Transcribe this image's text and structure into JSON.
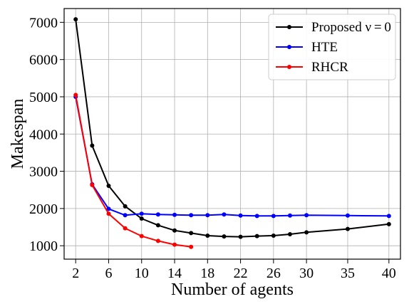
{
  "chart_data": {
    "type": "line",
    "title": "",
    "xlabel": "Number of agents",
    "ylabel": "Makespan",
    "xticks": [
      2,
      6,
      10,
      14,
      18,
      22,
      26,
      30,
      35,
      40
    ],
    "yticks": [
      1000,
      2000,
      3000,
      4000,
      5000,
      6000,
      7000
    ],
    "xlim": [
      0.6,
      41.4
    ],
    "ylim": [
      640,
      7370
    ],
    "grid": true,
    "legend_position": "top-right",
    "series": [
      {
        "name": "Proposed ν = 0",
        "color": "#000000",
        "x": [
          2,
          4,
          6,
          8,
          10,
          12,
          14,
          16,
          18,
          20,
          22,
          24,
          26,
          28,
          30,
          35,
          40
        ],
        "values": [
          7080,
          3690,
          2610,
          2060,
          1730,
          1550,
          1410,
          1340,
          1270,
          1250,
          1240,
          1260,
          1270,
          1310,
          1360,
          1450,
          1580
        ]
      },
      {
        "name": "HTE",
        "color": "#0000ff",
        "x": [
          2,
          4,
          6,
          8,
          10,
          12,
          14,
          16,
          18,
          20,
          22,
          24,
          26,
          28,
          30,
          35,
          40
        ],
        "values": [
          5000,
          2650,
          1990,
          1820,
          1860,
          1840,
          1830,
          1820,
          1820,
          1840,
          1810,
          1800,
          1800,
          1810,
          1820,
          1810,
          1800
        ]
      },
      {
        "name": "RHCR",
        "color": "#ff0000",
        "x": [
          2,
          4,
          6,
          8,
          10,
          12,
          14,
          16
        ],
        "values": [
          5050,
          2630,
          1860,
          1470,
          1260,
          1130,
          1030,
          970
        ]
      }
    ]
  }
}
